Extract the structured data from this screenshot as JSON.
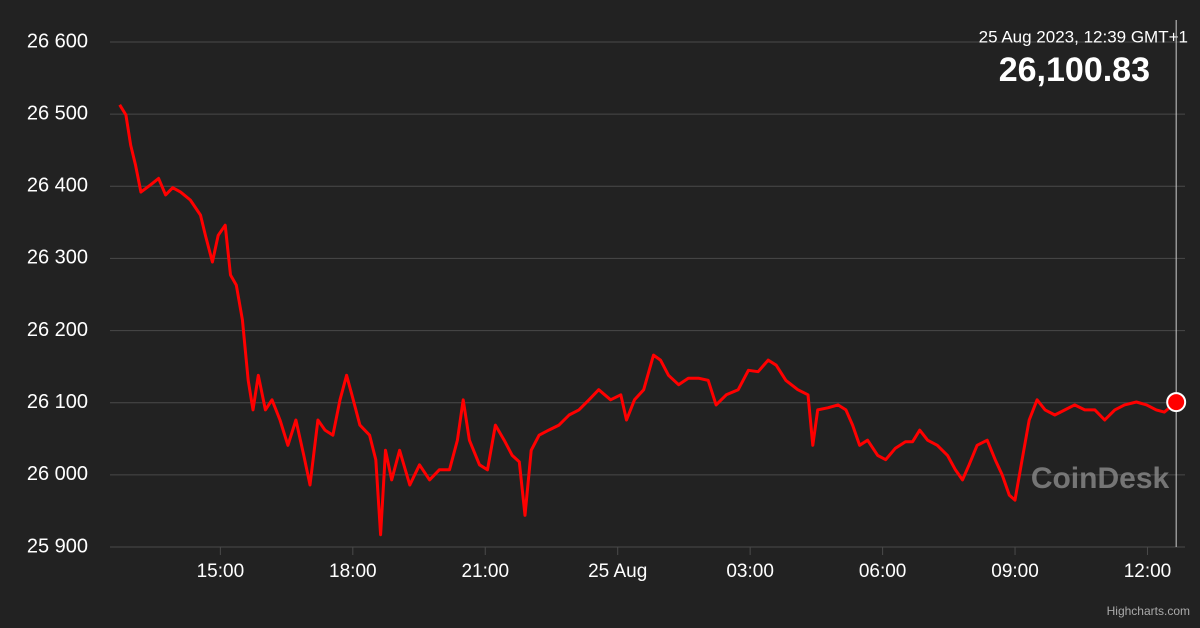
{
  "chart_data": {
    "type": "line",
    "color": "#ff0000",
    "x": [
      12.72,
      12.86,
      12.97,
      13.08,
      13.2,
      13.42,
      13.6,
      13.76,
      13.92,
      14.1,
      14.32,
      14.55,
      14.66,
      14.82,
      14.95,
      15.11,
      15.23,
      15.36,
      15.5,
      15.63,
      15.74,
      15.86,
      16.02,
      16.17,
      16.35,
      16.53,
      16.71,
      16.89,
      17.03,
      17.21,
      17.37,
      17.55,
      17.71,
      17.86,
      17.98,
      18.16,
      18.38,
      18.52,
      18.63,
      18.74,
      18.88,
      19.06,
      19.29,
      19.51,
      19.74,
      19.96,
      20.19,
      20.37,
      20.5,
      20.64,
      20.87,
      21.05,
      21.23,
      21.43,
      21.61,
      21.77,
      21.9,
      22.04,
      22.22,
      22.44,
      22.67,
      22.9,
      23.12,
      23.35,
      23.57,
      23.84,
      24.07,
      24.2,
      24.38,
      24.59,
      24.81,
      24.97,
      25.15,
      25.38,
      25.6,
      25.83,
      26.05,
      26.23,
      26.46,
      26.73,
      26.96,
      27.18,
      27.41,
      27.59,
      27.81,
      28.08,
      28.31,
      28.42,
      28.53,
      28.76,
      28.99,
      29.17,
      29.32,
      29.48,
      29.66,
      29.89,
      30.07,
      30.29,
      30.52,
      30.68,
      30.84,
      31.02,
      31.24,
      31.47,
      31.65,
      31.81,
      31.96,
      32.14,
      32.37,
      32.55,
      32.71,
      32.87,
      33.0,
      33.16,
      33.32,
      33.5,
      33.68,
      33.9,
      34.13,
      34.35,
      34.58,
      34.81,
      35.03,
      35.26,
      35.48,
      35.75,
      35.98,
      36.2,
      36.38,
      36.65
    ],
    "values": [
      26513,
      26499,
      26457,
      26429,
      26392,
      26402,
      26411,
      26388,
      26398,
      26392,
      26381,
      26360,
      26332,
      26295,
      26332,
      26346,
      26277,
      26263,
      26215,
      26131,
      26090,
      26138,
      26090,
      26104,
      26076,
      26041,
      26076,
      26027,
      25986,
      26076,
      26062,
      26055,
      26104,
      26138,
      26111,
      26069,
      26055,
      26021,
      25917,
      26034,
      25993,
      26034,
      25986,
      26014,
      25993,
      26007,
      26007,
      26048,
      26104,
      26048,
      26014,
      26007,
      26069,
      26048,
      26027,
      26018,
      25944,
      26034,
      26055,
      26062,
      26069,
      26083,
      26090,
      26104,
      26118,
      26104,
      26111,
      26076,
      26104,
      26118,
      26166,
      26159,
      26138,
      26125,
      26134,
      26134,
      26131,
      26097,
      26111,
      26118,
      26145,
      26143,
      26159,
      26152,
      26131,
      26118,
      26111,
      26041,
      26090,
      26093,
      26097,
      26090,
      26069,
      26041,
      26048,
      26027,
      26021,
      26037,
      26046,
      26046,
      26062,
      26048,
      26041,
      26027,
      26007,
      25993,
      26014,
      26041,
      26048,
      26021,
      26000,
      25972,
      25965,
      26021,
      26076,
      26104,
      26090,
      26083,
      26090,
      26097,
      26090,
      26090,
      26076,
      26090,
      26097,
      26101,
      26097,
      26090,
      26087,
      26100.83
    ],
    "xlim": [
      12.5,
      36.85
    ],
    "xticks": [
      {
        "value": 15,
        "label": "15:00"
      },
      {
        "value": 18,
        "label": "18:00"
      },
      {
        "value": 21,
        "label": "21:00"
      },
      {
        "value": 24,
        "label": "25 Aug"
      },
      {
        "value": 27,
        "label": "03:00"
      },
      {
        "value": 30,
        "label": "06:00"
      },
      {
        "value": 33,
        "label": "09:00"
      },
      {
        "value": 36,
        "label": "12:00"
      }
    ],
    "ylim": [
      25900,
      26600
    ],
    "yticks": [
      {
        "value": 25900,
        "label": "25 900"
      },
      {
        "value": 26000,
        "label": "26 000"
      },
      {
        "value": 26100,
        "label": "26 100"
      },
      {
        "value": 26200,
        "label": "26 200"
      },
      {
        "value": 26300,
        "label": "26 300"
      },
      {
        "value": 26400,
        "label": "26 400"
      },
      {
        "value": 26500,
        "label": "26 500"
      },
      {
        "value": 26600,
        "label": "26 600"
      }
    ],
    "grid": true,
    "tooltip": {
      "date": "25 Aug 2023, 12:39 GMT+1",
      "value_label": "26,100.83"
    },
    "watermark": "CoinDesk",
    "credits": "Highcharts.com"
  }
}
